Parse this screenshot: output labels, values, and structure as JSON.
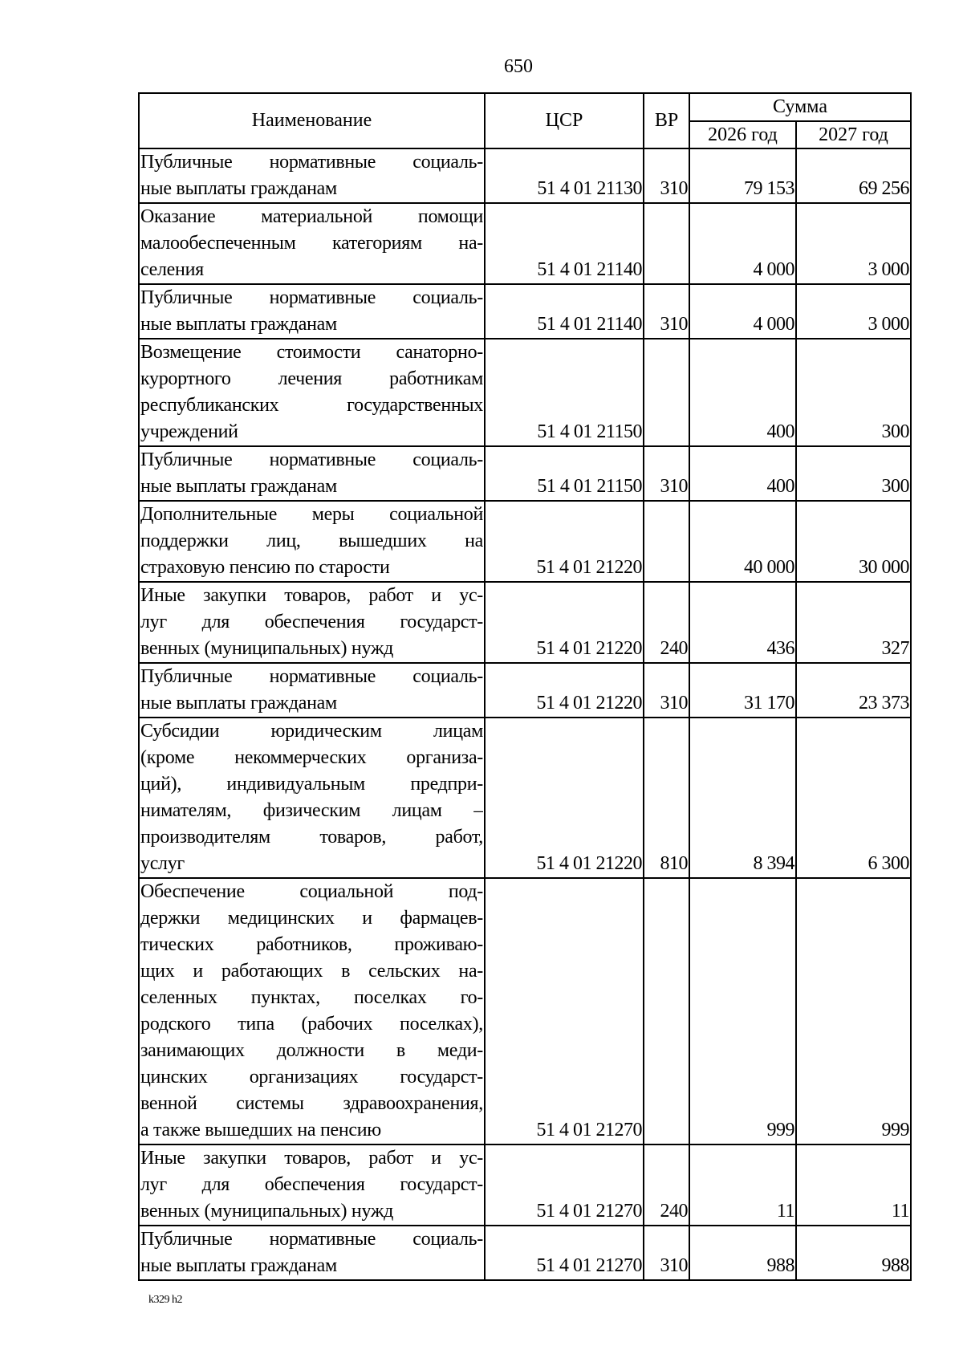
{
  "page_number": "650",
  "header": {
    "name": "Наименование",
    "csr": "ЦСР",
    "vr": "ВР",
    "sum": "Сумма",
    "y2026": "2026 год",
    "y2027": "2027 год"
  },
  "rows": [
    {
      "name": [
        "Публичные нормативные социаль-",
        "ные выплаты гражданам"
      ],
      "csr": "51 4 01 21130",
      "vr": "310",
      "y2026": "79 153",
      "y2027": "69 256"
    },
    {
      "name": [
        "Оказание материальной помощи",
        "малообеспеченным категориям на-",
        "селения"
      ],
      "csr": "51 4 01 21140",
      "vr": "",
      "y2026": "4 000",
      "y2027": "3 000"
    },
    {
      "name": [
        "Публичные нормативные социаль-",
        "ные выплаты гражданам"
      ],
      "csr": "51 4 01 21140",
      "vr": "310",
      "y2026": "4 000",
      "y2027": "3 000"
    },
    {
      "name": [
        "Возмещение стоимости санаторно-",
        "курортного лечения работникам",
        "республиканских государственных",
        "учреждений"
      ],
      "csr": "51 4 01 21150",
      "vr": "",
      "y2026": "400",
      "y2027": "300"
    },
    {
      "name": [
        "Публичные нормативные социаль-",
        "ные выплаты гражданам"
      ],
      "csr": "51 4 01 21150",
      "vr": "310",
      "y2026": "400",
      "y2027": "300"
    },
    {
      "name": [
        "Дополнительные меры социальной",
        "поддержки лиц, вышедших на",
        "страховую пенсию по старости"
      ],
      "csr": "51 4 01 21220",
      "vr": "",
      "y2026": "40 000",
      "y2027": "30 000"
    },
    {
      "name": [
        "Иные закупки товаров, работ и ус-",
        "луг для обеспечения государст-",
        "венных (муниципальных) нужд"
      ],
      "csr": "51 4 01 21220",
      "vr": "240",
      "y2026": "436",
      "y2027": "327"
    },
    {
      "name": [
        "Публичные нормативные социаль-",
        "ные выплаты гражданам"
      ],
      "csr": "51 4 01 21220",
      "vr": "310",
      "y2026": "31 170",
      "y2027": "23 373"
    },
    {
      "name": [
        "Субсидии юридическим лицам",
        "(кроме некоммерческих организа-",
        "ций), индивидуальным предпри-",
        "нимателям, физическим лицам –",
        "производителям товаров, работ,",
        "услуг"
      ],
      "csr": "51 4 01 21220",
      "vr": "810",
      "y2026": "8 394",
      "y2027": "6 300"
    },
    {
      "name": [
        "Обеспечение социальной под-",
        "держки медицинских и фармацев-",
        "тических работников, проживаю-",
        "щих и работающих в сельских на-",
        "селенных пунктах, поселках го-",
        "родского типа (рабочих поселках),",
        "занимающих должности в меди-",
        "цинских организациях государст-",
        "венной системы здравоохранения,",
        "а также вышедших на пенсию"
      ],
      "csr": "51 4 01 21270",
      "vr": "",
      "y2026": "999",
      "y2027": "999"
    },
    {
      "name": [
        "Иные закупки товаров, работ и ус-",
        "луг для обеспечения государст-",
        "венных (муниципальных) нужд"
      ],
      "csr": "51 4 01 21270",
      "vr": "240",
      "y2026": "11",
      "y2027": "11"
    },
    {
      "name": [
        "Публичные нормативные социаль-",
        "ные выплаты гражданам"
      ],
      "csr": "51 4 01 21270",
      "vr": "310",
      "y2026": "988",
      "y2027": "988"
    }
  ],
  "footer": "k329 h2"
}
